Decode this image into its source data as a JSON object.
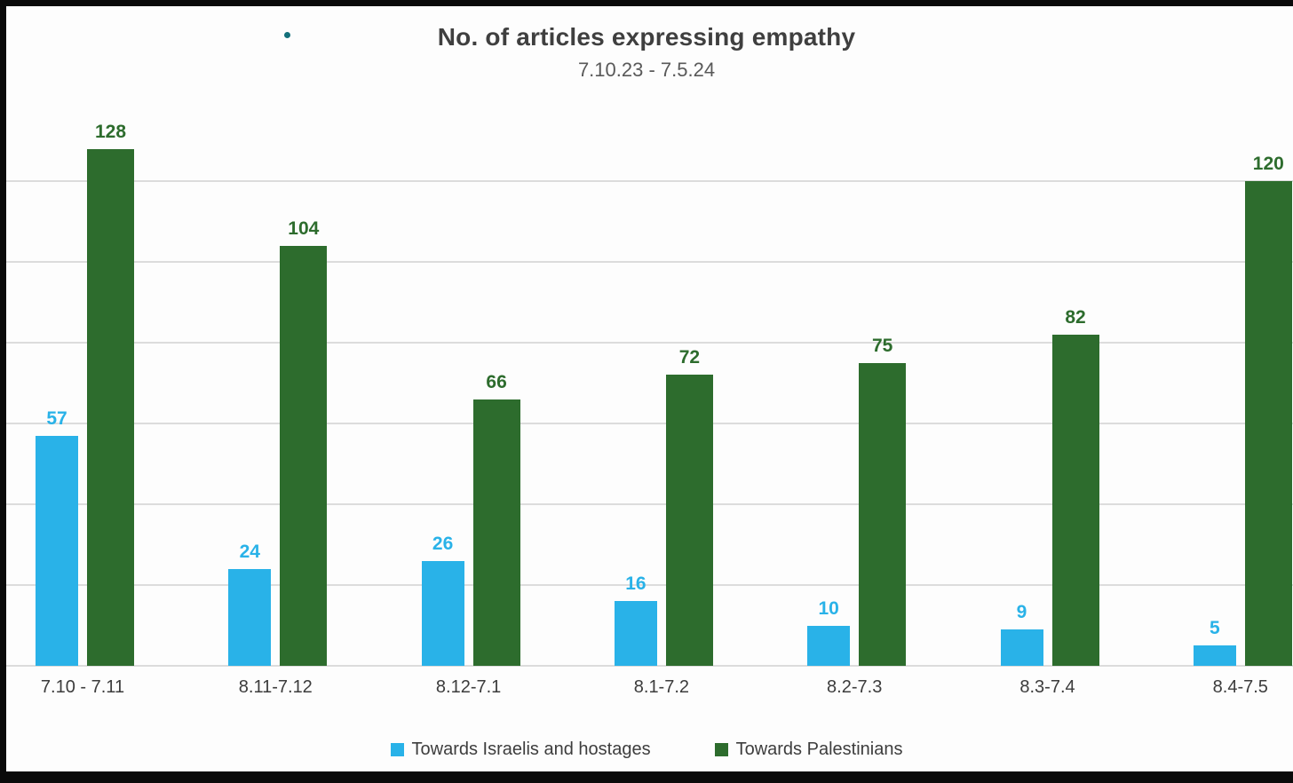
{
  "chart_data": {
    "type": "bar",
    "title": "No. of articles expressing empathy",
    "subtitle": "7.10.23 - 7.5.24",
    "categories": [
      "7.10 - 7.11",
      "8.11-7.12",
      "8.12-7.1",
      "8.1-7.2",
      "8.2-7.3",
      "8.3-7.4",
      "8.4-7.5"
    ],
    "series": [
      {
        "name": "Towards Israelis and hostages",
        "color": "#29b2e8",
        "values": [
          57,
          24,
          26,
          16,
          10,
          9,
          5
        ]
      },
      {
        "name": "Towards Palestinians",
        "color": "#2d6c2d",
        "values": [
          128,
          104,
          66,
          72,
          75,
          82,
          120
        ]
      }
    ],
    "ylim": [
      0,
      140
    ],
    "gridline_interval": 20,
    "gridline_max": 120,
    "grid": true,
    "value_labels_shown": true,
    "legend_position": "bottom",
    "xlabel": "",
    "ylabel": ""
  },
  "colors": {
    "background": "#fdfdfd",
    "frame": "#0a0a0a",
    "gridline": "#dcdcdc",
    "title_text": "#3f3f3f",
    "subtitle_text": "#595959",
    "axis_text": "#3c3c3c"
  }
}
